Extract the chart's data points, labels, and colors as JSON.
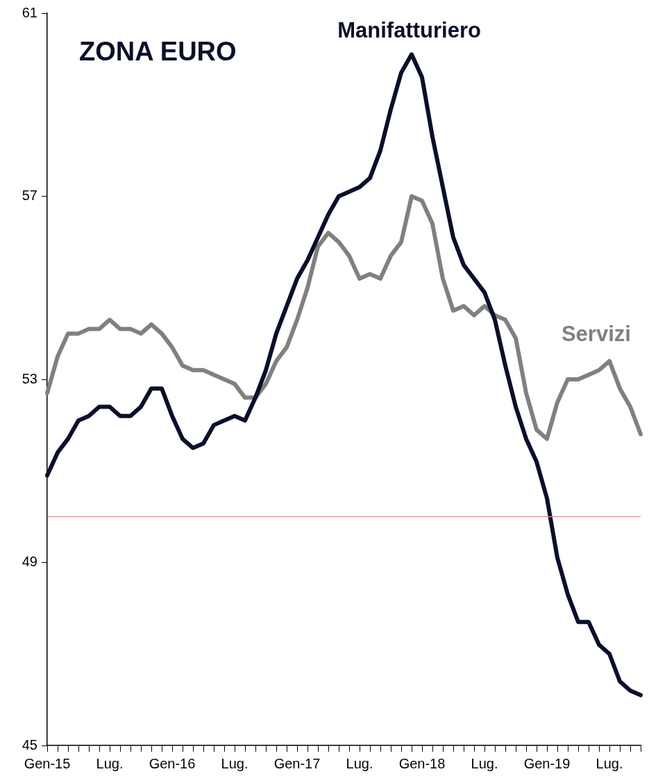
{
  "chart_data": {
    "type": "line",
    "title": "ZONA EURO",
    "categories": [
      "Gen-15",
      null,
      null,
      null,
      null,
      null,
      "Lug.",
      null,
      null,
      null,
      null,
      null,
      "Gen-16",
      null,
      null,
      null,
      null,
      null,
      "Lug.",
      null,
      null,
      null,
      null,
      null,
      "Gen-17",
      null,
      null,
      null,
      null,
      null,
      "Lug.",
      null,
      null,
      null,
      null,
      null,
      "Gen-18",
      null,
      null,
      null,
      null,
      null,
      "Lug.",
      null,
      null,
      null,
      null,
      null,
      "Gen-19",
      null,
      null,
      null,
      null,
      null,
      "Lug.",
      null,
      null,
      null
    ],
    "series": [
      {
        "name": "Manifatturiero",
        "color": "#0a0f2a",
        "values": [
          50.9,
          51.4,
          51.7,
          52.1,
          52.2,
          52.4,
          52.4,
          52.2,
          52.2,
          52.4,
          52.8,
          52.8,
          52.2,
          51.7,
          51.5,
          51.6,
          52.0,
          52.1,
          52.2,
          52.1,
          52.6,
          53.2,
          54.0,
          54.6,
          55.2,
          55.6,
          56.1,
          56.6,
          57.0,
          57.1,
          57.2,
          57.4,
          58.0,
          58.9,
          59.7,
          60.1,
          59.6,
          58.3,
          57.2,
          56.1,
          55.5,
          55.2,
          54.9,
          54.3,
          53.3,
          52.4,
          51.7,
          51.2,
          50.4,
          49.1,
          48.3,
          47.7,
          47.7,
          47.2,
          47.0,
          46.4,
          46.2,
          46.1
        ]
      },
      {
        "name": "Servizi",
        "color": "#808080",
        "values": [
          52.7,
          53.5,
          54.0,
          54.0,
          54.1,
          54.1,
          54.3,
          54.1,
          54.1,
          54.0,
          54.2,
          54.0,
          53.7,
          53.3,
          53.2,
          53.2,
          53.1,
          53.0,
          52.9,
          52.6,
          52.6,
          52.9,
          53.4,
          53.7,
          54.3,
          55.0,
          55.9,
          56.2,
          56.0,
          55.7,
          55.2,
          55.3,
          55.2,
          55.7,
          56.0,
          57.0,
          56.9,
          56.4,
          55.2,
          54.5,
          54.6,
          54.4,
          54.6,
          54.4,
          54.3,
          53.9,
          52.7,
          51.9,
          51.7,
          52.5,
          53.0,
          53.0,
          53.1,
          53.2,
          53.4,
          52.8,
          52.4,
          51.8
        ]
      }
    ],
    "ylim": [
      45,
      61
    ],
    "yticks": [
      45,
      49,
      53,
      57,
      61
    ],
    "ref_lines": [
      {
        "axis": "y",
        "value": 50,
        "color": "#ff8080"
      }
    ],
    "grid": false,
    "legend": false,
    "marker": "none",
    "line_style": "solid"
  }
}
